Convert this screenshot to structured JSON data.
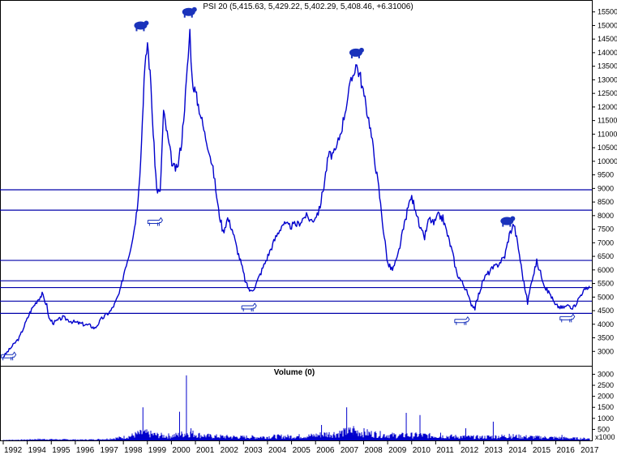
{
  "chart_data": [
    {
      "type": "line",
      "title": "PSI 20 (5,415.63, 5,429.22, 5,402.29, 5,408.46, +6.31006)",
      "x_ticks": [
        "1992",
        "1994",
        "1995",
        "1996",
        "1997",
        "1998",
        "1999",
        "2000",
        "2001",
        "2002",
        "2003",
        "2004",
        "2005",
        "2006",
        "2007",
        "2008",
        "2009",
        "2010",
        "2011",
        "2012",
        "2013",
        "2014",
        "2015",
        "2016",
        "2017"
      ],
      "y_ticks": [
        "3000",
        "3500",
        "4000",
        "4500",
        "5000",
        "5500",
        "6000",
        "6500",
        "7000",
        "7500",
        "8000",
        "8500",
        "9000",
        "9500",
        "10000",
        "10500",
        "11000",
        "11500",
        "12000",
        "12500",
        "13000",
        "13500",
        "14000",
        "14500",
        "15000",
        "15500"
      ],
      "ylim": [
        2500,
        15700
      ],
      "xlim": [
        1992.0,
        2017.6
      ],
      "grid": false,
      "horizontal_levels": [
        8950,
        8200,
        6350,
        5600,
        5350,
        4850,
        4400
      ],
      "series": [
        {
          "color": "#0000cc",
          "points": [
            [
              1992.0,
              2800
            ],
            [
              1992.3,
              3100
            ],
            [
              1992.7,
              3500
            ],
            [
              1993.0,
              4100
            ],
            [
              1993.2,
              4500
            ],
            [
              1993.5,
              4900
            ],
            [
              1993.7,
              5100
            ],
            [
              1993.9,
              4700
            ],
            [
              1994.0,
              4200
            ],
            [
              1994.2,
              4050
            ],
            [
              1994.6,
              4250
            ],
            [
              1995.0,
              4100
            ],
            [
              1995.5,
              4000
            ],
            [
              1995.8,
              3950
            ],
            [
              1996.0,
              3850
            ],
            [
              1996.3,
              4200
            ],
            [
              1996.7,
              4500
            ],
            [
              1996.9,
              4800
            ],
            [
              1997.1,
              5200
            ],
            [
              1997.3,
              6000
            ],
            [
              1997.5,
              6600
            ],
            [
              1997.7,
              7400
            ],
            [
              1997.85,
              8300
            ],
            [
              1998.0,
              10000
            ],
            [
              1998.15,
              13000
            ],
            [
              1998.3,
              14400
            ],
            [
              1998.45,
              12800
            ],
            [
              1998.55,
              11000
            ],
            [
              1998.7,
              9000
            ],
            [
              1998.85,
              8800
            ],
            [
              1999.0,
              11800
            ],
            [
              1999.2,
              10800
            ],
            [
              1999.4,
              9800
            ],
            [
              1999.6,
              9700
            ],
            [
              1999.8,
              10800
            ],
            [
              2000.0,
              12900
            ],
            [
              2000.15,
              14800
            ],
            [
              2000.25,
              13000
            ],
            [
              2000.4,
              12500
            ],
            [
              2000.6,
              11800
            ],
            [
              2000.8,
              11000
            ],
            [
              2001.0,
              10400
            ],
            [
              2001.2,
              9500
            ],
            [
              2001.4,
              8200
            ],
            [
              2001.6,
              7400
            ],
            [
              2001.8,
              7900
            ],
            [
              2002.0,
              7500
            ],
            [
              2002.2,
              6800
            ],
            [
              2002.4,
              6200
            ],
            [
              2002.6,
              5500
            ],
            [
              2002.8,
              5200
            ],
            [
              2003.0,
              5400
            ],
            [
              2003.3,
              6000
            ],
            [
              2003.6,
              6600
            ],
            [
              2003.9,
              7200
            ],
            [
              2004.2,
              7700
            ],
            [
              2004.5,
              7600
            ],
            [
              2004.9,
              7700
            ],
            [
              2005.2,
              8000
            ],
            [
              2005.5,
              7800
            ],
            [
              2005.8,
              8200
            ],
            [
              2006.0,
              9100
            ],
            [
              2006.2,
              10200
            ],
            [
              2006.5,
              10300
            ],
            [
              2006.8,
              11300
            ],
            [
              2007.1,
              12600
            ],
            [
              2007.4,
              13600
            ],
            [
              2007.6,
              13100
            ],
            [
              2007.8,
              12200
            ],
            [
              2008.0,
              11400
            ],
            [
              2008.2,
              10200
            ],
            [
              2008.4,
              9000
            ],
            [
              2008.6,
              7500
            ],
            [
              2008.8,
              6200
            ],
            [
              2009.0,
              6000
            ],
            [
              2009.2,
              6400
            ],
            [
              2009.4,
              7200
            ],
            [
              2009.6,
              8000
            ],
            [
              2009.8,
              8700
            ],
            [
              2010.0,
              8300
            ],
            [
              2010.2,
              7500
            ],
            [
              2010.4,
              7200
            ],
            [
              2010.6,
              7900
            ],
            [
              2010.8,
              7700
            ],
            [
              2011.0,
              8000
            ],
            [
              2011.2,
              7900
            ],
            [
              2011.4,
              7300
            ],
            [
              2011.6,
              6700
            ],
            [
              2011.8,
              5900
            ],
            [
              2012.0,
              5600
            ],
            [
              2012.2,
              5300
            ],
            [
              2012.4,
              4800
            ],
            [
              2012.6,
              4600
            ],
            [
              2012.8,
              5200
            ],
            [
              2013.0,
              5700
            ],
            [
              2013.3,
              6000
            ],
            [
              2013.6,
              6200
            ],
            [
              2013.9,
              6500
            ],
            [
              2014.1,
              7300
            ],
            [
              2014.3,
              7700
            ],
            [
              2014.5,
              6800
            ],
            [
              2014.7,
              5700
            ],
            [
              2014.9,
              4800
            ],
            [
              2015.1,
              5700
            ],
            [
              2015.3,
              6300
            ],
            [
              2015.5,
              5800
            ],
            [
              2015.7,
              5300
            ],
            [
              2015.9,
              5100
            ],
            [
              2016.1,
              4700
            ],
            [
              2016.4,
              4600
            ],
            [
              2016.7,
              4700
            ],
            [
              2016.9,
              4600
            ],
            [
              2017.1,
              4900
            ],
            [
              2017.3,
              5200
            ],
            [
              2017.5,
              5300
            ],
            [
              2017.6,
              5410
            ]
          ]
        }
      ]
    },
    {
      "type": "bar",
      "title": "Volume (0)",
      "unit_label": "x1000",
      "y_ticks": [
        "500",
        "1000",
        "1500",
        "2000",
        "2500",
        "3000"
      ],
      "ylim": [
        0,
        3200
      ],
      "xlim": [
        1992.0,
        2017.6
      ],
      "spikes": [
        [
          1998.1,
          1500
        ],
        [
          1999.7,
          1300
        ],
        [
          2000.0,
          2950
        ],
        [
          2000.2,
          550
        ],
        [
          2005.9,
          700
        ],
        [
          2007.0,
          1500
        ],
        [
          2007.3,
          650
        ],
        [
          2009.6,
          1250
        ],
        [
          2010.2,
          1150
        ],
        [
          2011.1,
          350
        ],
        [
          2012.2,
          550
        ],
        [
          2013.4,
          850
        ],
        [
          2014.1,
          300
        ],
        [
          2016.4,
          250
        ]
      ],
      "bars": [
        [
          1992.0,
          20
        ],
        [
          1992.5,
          25
        ],
        [
          1993.0,
          35
        ],
        [
          1993.5,
          60
        ],
        [
          1994.0,
          55
        ],
        [
          1994.5,
          45
        ],
        [
          1995.0,
          40
        ],
        [
          1995.5,
          35
        ],
        [
          1996.0,
          45
        ],
        [
          1996.5,
          70
        ],
        [
          1997.0,
          120
        ],
        [
          1997.3,
          160
        ],
        [
          1997.6,
          220
        ],
        [
          1997.9,
          330
        ],
        [
          1998.2,
          360
        ],
        [
          1998.5,
          300
        ],
        [
          1998.8,
          250
        ],
        [
          1999.1,
          220
        ],
        [
          1999.4,
          230
        ],
        [
          1999.7,
          280
        ],
        [
          2000.0,
          360
        ],
        [
          2000.3,
          330
        ],
        [
          2000.6,
          260
        ],
        [
          2000.9,
          220
        ],
        [
          2001.2,
          200
        ],
        [
          2001.5,
          190
        ],
        [
          2001.8,
          180
        ],
        [
          2002.1,
          170
        ],
        [
          2002.4,
          160
        ],
        [
          2002.7,
          170
        ],
        [
          2003.0,
          160
        ],
        [
          2003.3,
          170
        ],
        [
          2003.6,
          180
        ],
        [
          2003.9,
          190
        ],
        [
          2004.2,
          200
        ],
        [
          2004.5,
          190
        ],
        [
          2004.8,
          200
        ],
        [
          2005.1,
          210
        ],
        [
          2005.4,
          220
        ],
        [
          2005.7,
          260
        ],
        [
          2006.0,
          300
        ],
        [
          2006.3,
          320
        ],
        [
          2006.6,
          340
        ],
        [
          2006.9,
          400
        ],
        [
          2007.2,
          450
        ],
        [
          2007.5,
          430
        ],
        [
          2007.8,
          380
        ],
        [
          2008.1,
          330
        ],
        [
          2008.4,
          300
        ],
        [
          2008.7,
          270
        ],
        [
          2009.0,
          250
        ],
        [
          2009.3,
          240
        ],
        [
          2009.6,
          260
        ],
        [
          2009.9,
          250
        ],
        [
          2010.2,
          260
        ],
        [
          2010.5,
          240
        ],
        [
          2010.8,
          220
        ],
        [
          2011.1,
          210
        ],
        [
          2011.4,
          200
        ],
        [
          2011.7,
          190
        ],
        [
          2012.0,
          180
        ],
        [
          2012.3,
          170
        ],
        [
          2012.6,
          165
        ],
        [
          2012.9,
          160
        ],
        [
          2013.2,
          180
        ],
        [
          2013.5,
          190
        ],
        [
          2013.8,
          200
        ],
        [
          2014.1,
          210
        ],
        [
          2014.4,
          200
        ],
        [
          2014.7,
          180
        ],
        [
          2015.0,
          170
        ],
        [
          2015.3,
          160
        ],
        [
          2015.6,
          150
        ],
        [
          2015.9,
          140
        ],
        [
          2016.2,
          130
        ],
        [
          2016.5,
          120
        ],
        [
          2016.8,
          110
        ],
        [
          2017.1,
          100
        ],
        [
          2017.4,
          90
        ]
      ]
    }
  ],
  "colors": {
    "price_line": "#0000cc",
    "levels": "#0000aa",
    "icons": "#1a33bb",
    "axis": "#000000"
  },
  "annotations": {
    "bear_icons": [
      [
        1998.0,
        15000
      ],
      [
        2000.1,
        15500
      ],
      [
        2007.4,
        14000
      ],
      [
        2014.0,
        7800
      ]
    ],
    "bull_icons": [
      [
        1992.2,
        2850
      ],
      [
        1998.6,
        7800
      ],
      [
        2002.7,
        4650
      ],
      [
        2012.0,
        4150
      ],
      [
        2016.6,
        4250
      ]
    ]
  }
}
